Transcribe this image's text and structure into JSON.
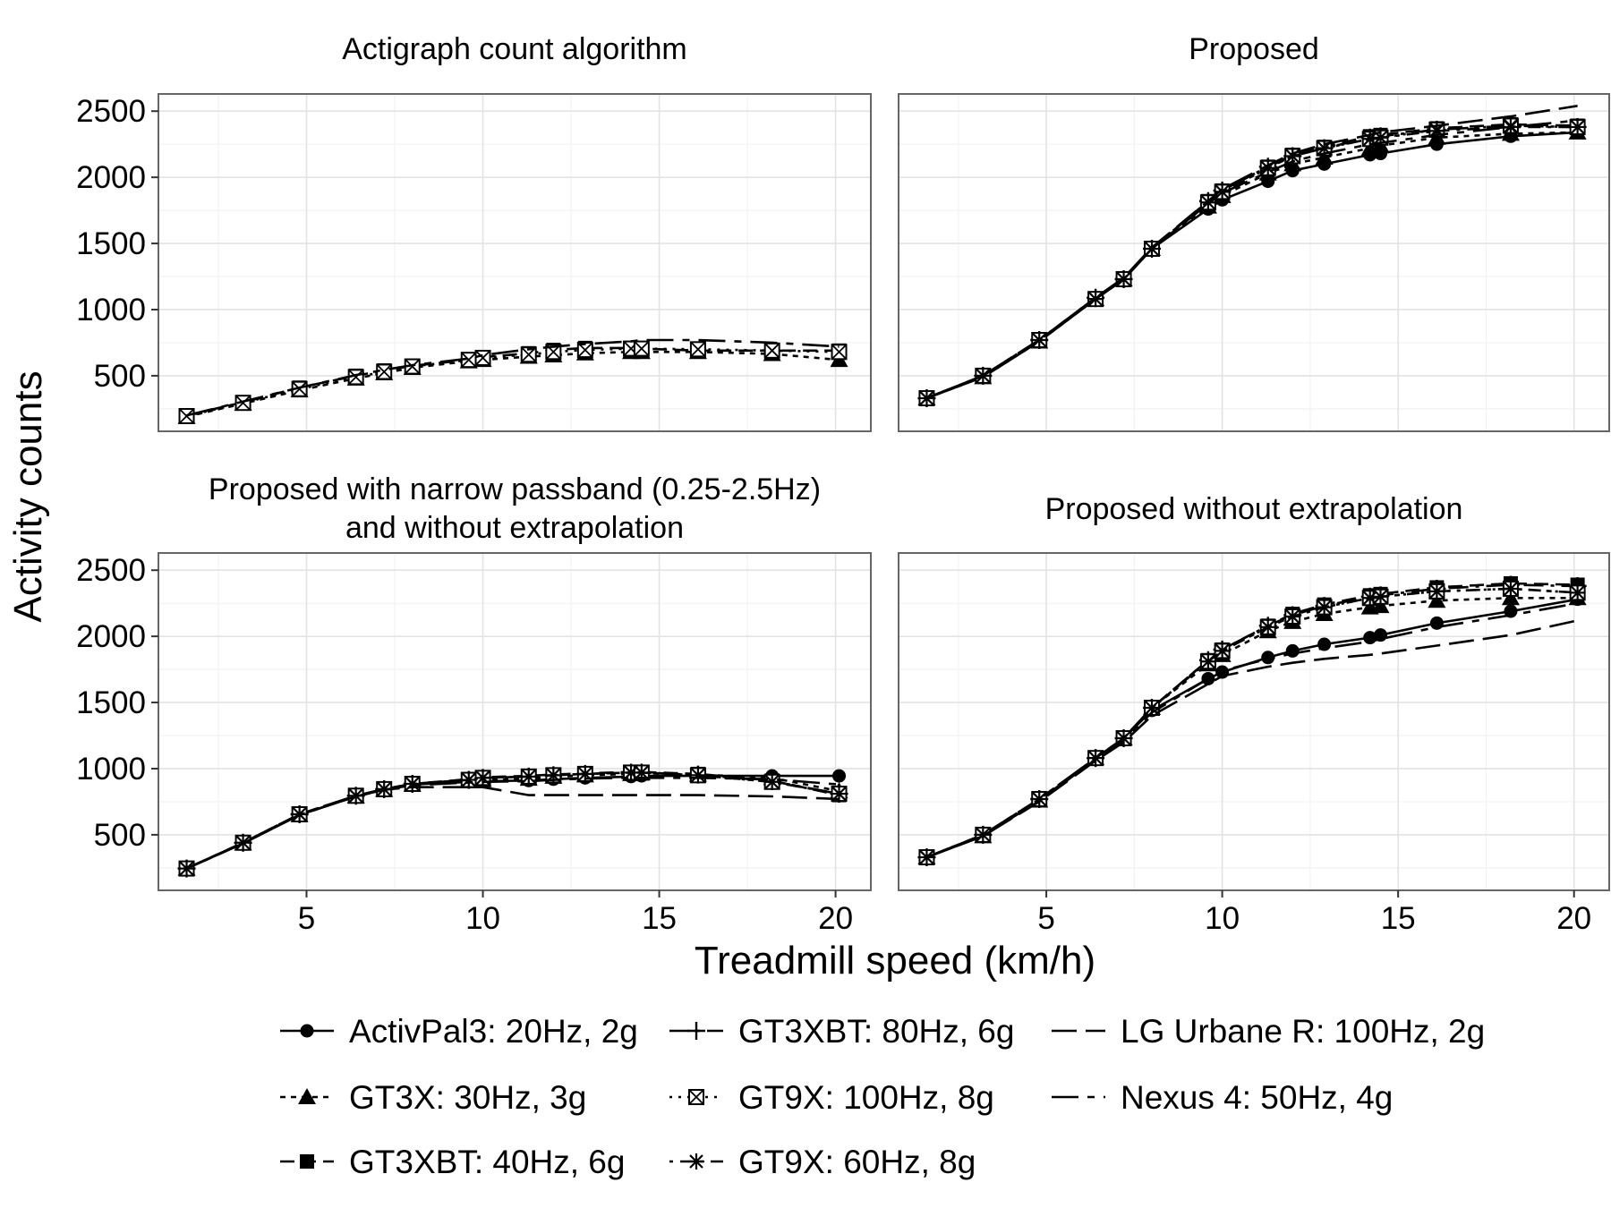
{
  "chart_data": {
    "type": "line",
    "x_label": "Treadmill speed (km/h)",
    "y_label": "Activity counts",
    "x_ticks": [
      5,
      10,
      15,
      20
    ],
    "y_ticks": [
      500,
      1000,
      1500,
      2000,
      2500
    ],
    "xlim": [
      0.8,
      21.0
    ],
    "ylim": [
      80,
      2630
    ],
    "grid": true,
    "legend_position": "bottom",
    "speeds": [
      1.6,
      3.2,
      4.8,
      6.4,
      7.2,
      8.0,
      9.6,
      10.0,
      11.3,
      12.0,
      12.9,
      14.2,
      14.5,
      16.1,
      18.2,
      20.1
    ],
    "series_styles": [
      {
        "name": "ActivPal3: 20Hz, 2g",
        "dash": "",
        "marker": "circle"
      },
      {
        "name": "GT3X: 30Hz, 3g",
        "dash": "6,6",
        "marker": "triangle"
      },
      {
        "name": "GT3XBT: 40Hz, 6g",
        "dash": "16,8",
        "marker": "square"
      },
      {
        "name": "GT3XBT: 80Hz, 6g",
        "dash": "22,8,4,8",
        "marker": "plus"
      },
      {
        "name": "GT9X: 100Hz, 8g",
        "dash": "3,7",
        "marker": "boxx"
      },
      {
        "name": "GT9X: 60Hz, 8g",
        "dash": "4,8,14,8",
        "marker": "star"
      },
      {
        "name": "LG Urbane R: 100Hz, 2g",
        "dash": "28,10",
        "marker": "none"
      },
      {
        "name": "Nexus 4: 50Hz, 4g",
        "dash": "30,10,8,10",
        "marker": "none"
      }
    ],
    "panels": [
      {
        "title": [
          "Actigraph count algorithm"
        ],
        "series": [
          {
            "name": "GT3X: 30Hz, 3g",
            "values": [
              190,
              290,
              390,
              480,
              520,
              560,
              610,
              620,
              645,
              655,
              670,
              680,
              680,
              680,
              665,
              620
            ]
          },
          {
            "name": "GT3XBT: 40Hz, 6g",
            "values": [
              200,
              300,
              410,
              500,
              540,
              575,
              620,
              640,
              670,
              695,
              710,
              710,
              705,
              690,
              690,
              690
            ]
          },
          {
            "name": "GT9X: 100Hz, 8g",
            "values": [
              195,
              295,
              400,
              490,
              530,
              570,
              620,
              635,
              660,
              680,
              695,
              705,
              705,
              700,
              690,
              680
            ]
          },
          {
            "name": "Nexus 4: 50Hz, 4g",
            "values": [
              200,
              305,
              410,
              505,
              545,
              580,
              630,
              655,
              700,
              720,
              740,
              760,
              770,
              770,
              750,
              720
            ]
          }
        ]
      },
      {
        "title": [
          "Proposed"
        ],
        "series": [
          {
            "name": "ActivPal3: 20Hz, 2g",
            "values": [
              330,
              490,
              760,
              1080,
              1230,
              1460,
              1760,
              1830,
              1970,
              2050,
              2100,
              2170,
              2180,
              2250,
              2310,
              2340
            ]
          },
          {
            "name": "GT3X: 30Hz, 3g",
            "values": [
              330,
              490,
              760,
              1080,
              1230,
              1460,
              1780,
              1860,
              2030,
              2100,
              2150,
              2220,
              2240,
              2300,
              2330,
              2340
            ]
          },
          {
            "name": "GT3XBT: 40Hz, 6g",
            "values": [
              330,
              500,
              770,
              1080,
              1230,
              1460,
              1820,
              1900,
              2080,
              2170,
              2230,
              2310,
              2320,
              2370,
              2400,
              2390
            ]
          },
          {
            "name": "GT3XBT: 80Hz, 6g",
            "values": [
              330,
              500,
              770,
              1090,
              1230,
              1460,
              1820,
              1900,
              2080,
              2160,
              2220,
              2300,
              2310,
              2360,
              2390,
              2380
            ]
          },
          {
            "name": "GT9X: 100Hz, 8g",
            "values": [
              330,
              500,
              770,
              1080,
              1230,
              1460,
              1810,
              1890,
              2070,
              2160,
              2220,
              2290,
              2300,
              2360,
              2390,
              2380
            ]
          },
          {
            "name": "GT9X: 60Hz, 8g",
            "values": [
              330,
              500,
              770,
              1080,
              1230,
              1460,
              1810,
              1890,
              2070,
              2160,
              2220,
              2290,
              2300,
              2350,
              2380,
              2380
            ]
          },
          {
            "name": "LG Urbane R: 100Hz, 2g",
            "values": [
              330,
              500,
              770,
              1090,
              1240,
              1470,
              1820,
              1910,
              2090,
              2180,
              2250,
              2320,
              2340,
              2390,
              2460,
              2540
            ]
          },
          {
            "name": "Nexus 4: 50Hz, 4g",
            "values": [
              330,
              500,
              770,
              1080,
              1230,
              1460,
              1800,
              1880,
              2040,
              2120,
              2180,
              2250,
              2260,
              2320,
              2380,
              2430
            ]
          }
        ]
      },
      {
        "title": [
          "Proposed with narrow passband (0.25-2.5Hz)",
          "and without extrapolation"
        ],
        "series": [
          {
            "name": "ActivPal3: 20Hz, 2g",
            "values": [
              245,
              435,
              650,
              790,
              840,
              880,
              900,
              905,
              910,
              920,
              930,
              940,
              945,
              945,
              945,
              945
            ]
          },
          {
            "name": "GT3X: 30Hz, 3g",
            "values": [
              245,
              435,
              650,
              790,
              840,
              880,
              905,
              915,
              925,
              940,
              950,
              960,
              965,
              955,
              930,
              830
            ]
          },
          {
            "name": "GT3XBT: 40Hz, 6g",
            "values": [
              245,
              440,
              655,
              795,
              845,
              885,
              920,
              935,
              945,
              955,
              965,
              975,
              975,
              960,
              910,
              800
            ]
          },
          {
            "name": "GT3XBT: 80Hz, 6g",
            "values": [
              245,
              440,
              655,
              795,
              845,
              885,
              915,
              930,
              940,
              950,
              960,
              970,
              970,
              955,
              905,
              810
            ]
          },
          {
            "name": "GT9X: 100Hz, 8g",
            "values": [
              245,
              440,
              655,
              795,
              845,
              885,
              915,
              930,
              940,
              950,
              960,
              970,
              970,
              950,
              900,
              810
            ]
          },
          {
            "name": "GT9X: 60Hz, 8g",
            "values": [
              245,
              440,
              655,
              795,
              845,
              885,
              915,
              930,
              940,
              950,
              960,
              970,
              970,
              950,
              900,
              810
            ]
          },
          {
            "name": "LG Urbane R: 100Hz, 2g",
            "values": [
              245,
              435,
              650,
              790,
              840,
              860,
              860,
              860,
              800,
              800,
              800,
              800,
              800,
              800,
              790,
              770
            ]
          },
          {
            "name": "Nexus 4: 50Hz, 4g",
            "values": [
              245,
              435,
              650,
              790,
              840,
              875,
              895,
              900,
              905,
              915,
              925,
              930,
              930,
              930,
              920,
              880
            ]
          }
        ]
      },
      {
        "title": [
          "Proposed without extrapolation"
        ],
        "series": [
          {
            "name": "ActivPal3: 20Hz, 2g",
            "values": [
              330,
              490,
              760,
              1080,
              1230,
              1440,
              1680,
              1730,
              1840,
              1890,
              1940,
              1990,
              2010,
              2100,
              2190,
              2280
            ]
          },
          {
            "name": "GT3X: 30Hz, 3g",
            "values": [
              330,
              490,
              760,
              1080,
              1230,
              1460,
              1790,
              1860,
              2040,
              2110,
              2170,
              2220,
              2230,
              2270,
              2290,
              2290
            ]
          },
          {
            "name": "GT3XBT: 40Hz, 6g",
            "values": [
              330,
              500,
              770,
              1080,
              1230,
              1460,
              1820,
              1900,
              2080,
              2170,
              2240,
              2310,
              2320,
              2370,
              2400,
              2390
            ]
          },
          {
            "name": "GT3XBT: 80Hz, 6g",
            "values": [
              330,
              500,
              770,
              1080,
              1230,
              1460,
              1820,
              1900,
              2080,
              2160,
              2230,
              2300,
              2310,
              2360,
              2390,
              2380
            ]
          },
          {
            "name": "GT9X: 100Hz, 8g",
            "values": [
              330,
              500,
              770,
              1080,
              1230,
              1460,
              1810,
              1890,
              2070,
              2150,
              2220,
              2290,
              2300,
              2340,
              2360,
              2330
            ]
          },
          {
            "name": "GT9X: 60Hz, 8g",
            "values": [
              330,
              500,
              770,
              1080,
              1230,
              1460,
              1810,
              1890,
              2070,
              2150,
              2220,
              2290,
              2300,
              2340,
              2360,
              2330
            ]
          },
          {
            "name": "LG Urbane R: 100Hz, 2g",
            "values": [
              330,
              490,
              750,
              1060,
              1200,
              1400,
              1640,
              1700,
              1770,
              1800,
              1830,
              1860,
              1870,
              1930,
              2010,
              2120
            ]
          },
          {
            "name": "Nexus 4: 50Hz, 4g",
            "values": [
              330,
              490,
              755,
              1070,
              1215,
              1425,
              1680,
              1740,
              1830,
              1870,
              1910,
              1960,
              1980,
              2070,
              2160,
              2250
            ]
          }
        ]
      }
    ]
  }
}
